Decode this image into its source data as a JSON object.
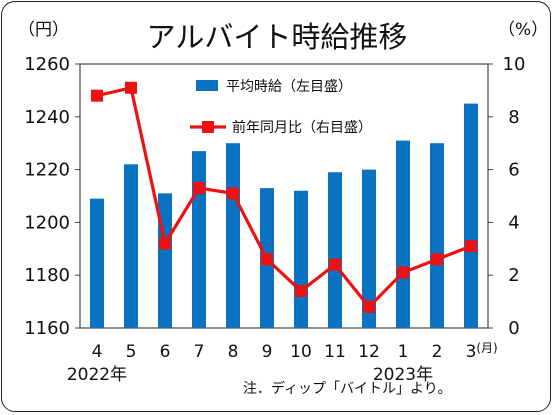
{
  "chart_data": {
    "type": "bar+line",
    "title": "アルバイト時給推移",
    "left_unit": "（円）",
    "right_unit": "（%）",
    "categories": [
      "4",
      "5",
      "6",
      "7",
      "8",
      "9",
      "10",
      "11",
      "12",
      "1",
      "2",
      "3"
    ],
    "month_suffix": "(月)",
    "year_labels": [
      {
        "text": "2022年",
        "category_index": 0
      },
      {
        "text": "2023年",
        "category_index": 9
      }
    ],
    "left_axis": {
      "min": 1160,
      "max": 1260,
      "ticks": [
        1160,
        1180,
        1200,
        1220,
        1240,
        1260
      ]
    },
    "right_axis": {
      "min": 0,
      "max": 10,
      "ticks": [
        0,
        2,
        4,
        6,
        8,
        10
      ]
    },
    "series": [
      {
        "name": "平均時給（左目盛）",
        "type": "bar",
        "axis": "left",
        "color": "#0b72c2",
        "values": [
          1209,
          1222,
          1211,
          1227,
          1230,
          1213,
          1212,
          1219,
          1220,
          1231,
          1230,
          1245
        ]
      },
      {
        "name": "前年同月比（右目盛）",
        "type": "line",
        "axis": "right",
        "color": "#ee1111",
        "values": [
          8.8,
          9.1,
          3.2,
          5.3,
          5.1,
          2.6,
          1.4,
          2.4,
          0.8,
          2.1,
          2.6,
          3.1
        ]
      }
    ],
    "legend_position": "top-center",
    "grid": false
  },
  "footer": {
    "note": "注．ディップ「バイトル」より。"
  }
}
